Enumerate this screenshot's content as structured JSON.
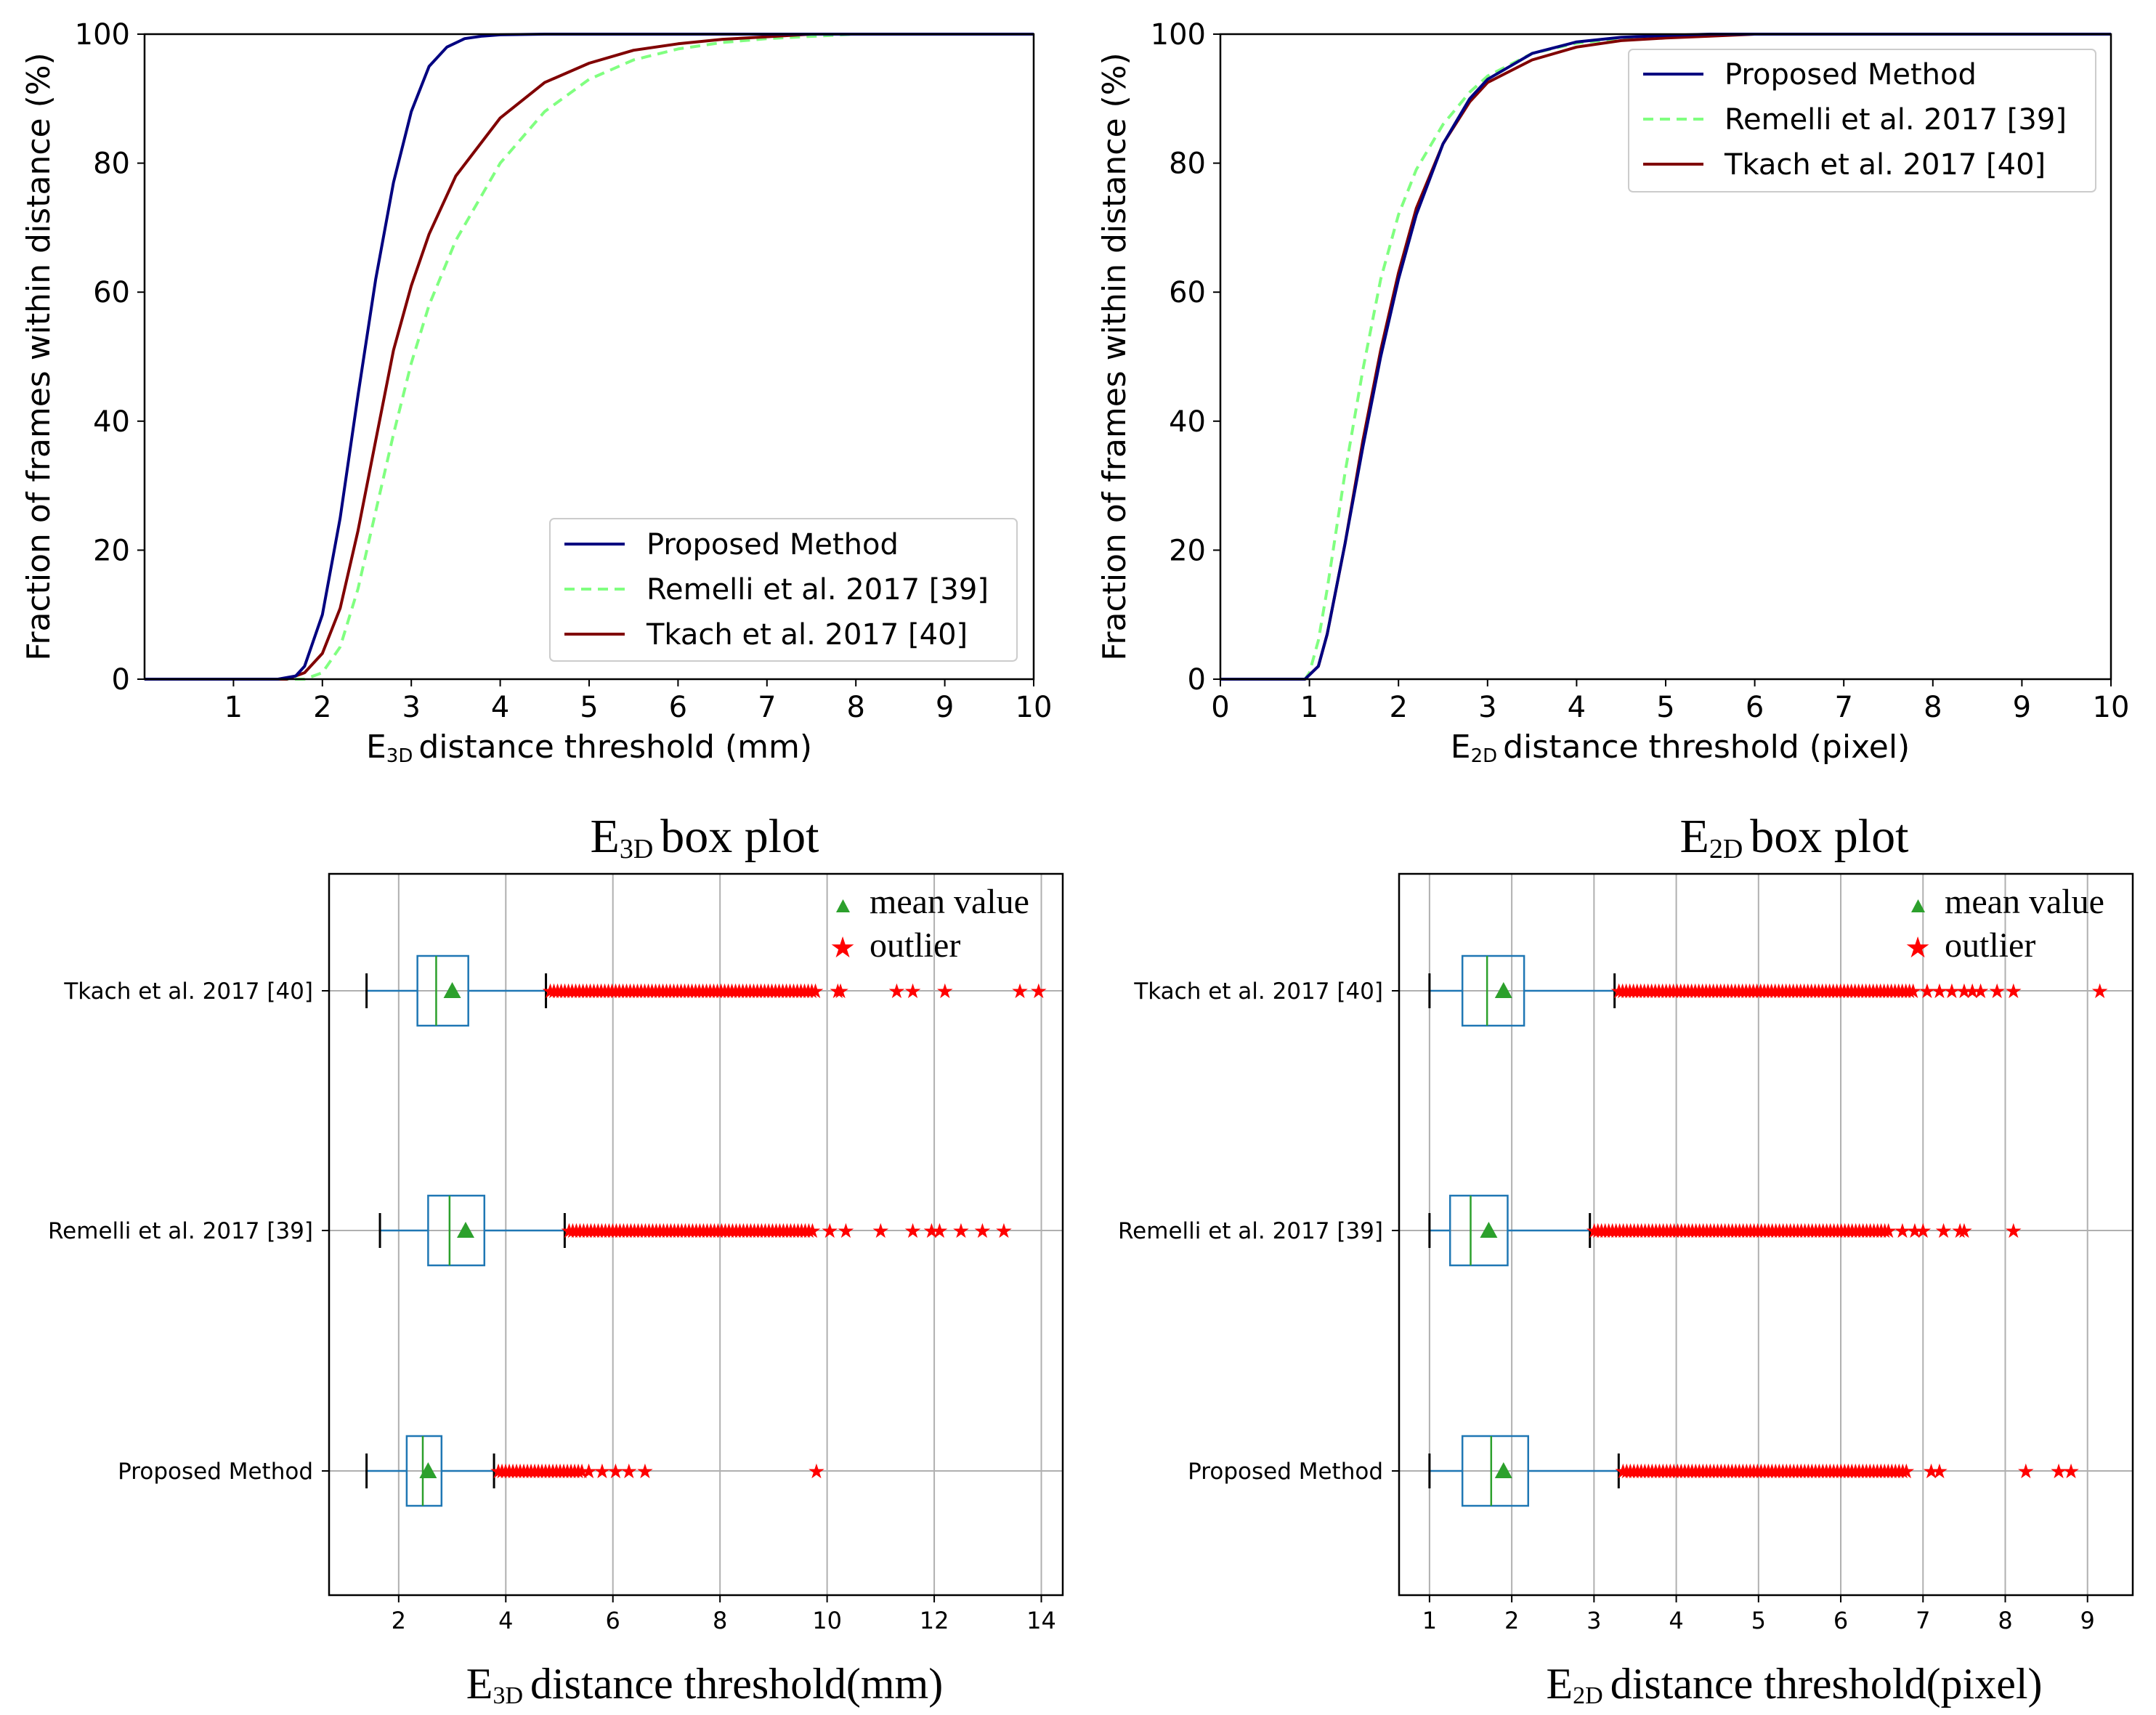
{
  "colors": {
    "proposed": "#000080",
    "remelli": "#80ff80",
    "tkach": "#800000",
    "box": "#1f77b4",
    "median": "#2ca02c",
    "mean": "#2ca02c",
    "outlier": "#ff0000",
    "grid": "#b0b0b0"
  },
  "chart_data": [
    {
      "type": "line",
      "id": "cdf3d",
      "title": "",
      "xlabel_prefix": "E",
      "xlabel_sub": "3D",
      "xlabel_rest": "distance threshold (mm)",
      "ylabel": "Fraction of frames within distance (%)",
      "xlim": [
        0,
        10
      ],
      "ylim": [
        0,
        100
      ],
      "xticks": [
        "1",
        "2",
        "3",
        "4",
        "5",
        "6",
        "7",
        "8",
        "9",
        "10"
      ],
      "yticks": [
        "0",
        "20",
        "40",
        "60",
        "80",
        "100"
      ],
      "legend_position": "lower-right",
      "series": [
        {
          "name": "Proposed Method",
          "style": "solid",
          "x": [
            0,
            1.5,
            1.7,
            1.8,
            2.0,
            2.2,
            2.4,
            2.6,
            2.8,
            3.0,
            3.2,
            3.4,
            3.6,
            3.8,
            4.0,
            4.5,
            5,
            6,
            10
          ],
          "y": [
            0,
            0,
            0.5,
            2,
            10,
            25,
            44,
            62,
            77,
            88,
            95,
            98,
            99.3,
            99.7,
            99.9,
            100,
            100,
            100,
            100
          ]
        },
        {
          "name": "Remelli et al. 2017 [39]",
          "style": "dashed",
          "x": [
            0,
            1.8,
            2.0,
            2.2,
            2.4,
            2.6,
            2.8,
            3.0,
            3.2,
            3.5,
            4.0,
            4.5,
            5,
            5.5,
            6,
            6.5,
            7,
            8,
            10
          ],
          "y": [
            0,
            0,
            1,
            5,
            14,
            26,
            38,
            49,
            58,
            68,
            80,
            88,
            93,
            96,
            97.7,
            98.7,
            99.3,
            100,
            100
          ]
        },
        {
          "name": "Tkach et al. 2017 [40]",
          "style": "solid",
          "x": [
            0,
            1.6,
            1.8,
            2.0,
            2.2,
            2.4,
            2.6,
            2.8,
            3.0,
            3.2,
            3.5,
            4.0,
            4.5,
            5,
            5.5,
            6,
            6.5,
            7,
            7.5,
            10
          ],
          "y": [
            0,
            0,
            1,
            4,
            11,
            23,
            37,
            51,
            61,
            69,
            78,
            87,
            92.5,
            95.5,
            97.5,
            98.5,
            99.2,
            99.6,
            100,
            100
          ]
        }
      ]
    },
    {
      "type": "line",
      "id": "cdf2d",
      "title": "",
      "xlabel_prefix": "E",
      "xlabel_sub": "2D",
      "xlabel_rest": "distance threshold (pixel)",
      "ylabel": "Fraction of frames within distance (%)",
      "xlim": [
        0,
        10
      ],
      "ylim": [
        0,
        100
      ],
      "xticks": [
        "0",
        "1",
        "2",
        "3",
        "4",
        "5",
        "6",
        "7",
        "8",
        "9",
        "10"
      ],
      "yticks": [
        "0",
        "20",
        "40",
        "60",
        "80",
        "100"
      ],
      "legend_position": "upper-right",
      "series": [
        {
          "name": "Proposed Method",
          "style": "solid",
          "x": [
            0,
            0.95,
            1.1,
            1.2,
            1.4,
            1.6,
            1.8,
            2.0,
            2.2,
            2.5,
            2.8,
            3.0,
            3.5,
            4.0,
            4.5,
            5,
            5.5,
            6,
            10
          ],
          "y": [
            0,
            0,
            2,
            7,
            21,
            36,
            50,
            62,
            72,
            83,
            90,
            93,
            97,
            98.8,
            99.5,
            99.8,
            100,
            100,
            100
          ]
        },
        {
          "name": "Remelli et al. 2017 [39]",
          "style": "dashed",
          "x": [
            0,
            0.95,
            1.0,
            1.1,
            1.2,
            1.4,
            1.6,
            1.8,
            2.0,
            2.2,
            2.5,
            2.8,
            3.0,
            3.5,
            4.0,
            4.5,
            5,
            6,
            10
          ],
          "y": [
            0,
            0,
            1,
            6,
            14,
            32,
            48,
            62,
            72,
            79,
            86,
            91,
            93.5,
            97,
            98.6,
            99.3,
            99.7,
            100,
            100
          ]
        },
        {
          "name": "Tkach et al. 2017 [40]",
          "style": "solid",
          "x": [
            0,
            0.95,
            1.1,
            1.2,
            1.4,
            1.6,
            1.8,
            2.0,
            2.2,
            2.5,
            2.8,
            3.0,
            3.5,
            4.0,
            4.5,
            5,
            5.5,
            6,
            6.5,
            10
          ],
          "y": [
            0,
            0,
            2,
            7,
            21,
            37,
            51,
            63,
            73,
            83,
            89.5,
            92.5,
            96,
            98,
            99,
            99.4,
            99.7,
            100,
            100,
            100
          ]
        }
      ]
    },
    {
      "type": "box",
      "id": "box3d",
      "title_prefix": "E",
      "title_sub": "3D",
      "title_rest": "box plot",
      "xlabel_prefix": "E",
      "xlabel_sub": "3D",
      "xlabel_rest": "distance threshold(mm)",
      "xlim": [
        0.7,
        14.4
      ],
      "xticks": [
        "2",
        "4",
        "6",
        "8",
        "10",
        "12",
        "14"
      ],
      "legend": [
        "mean value",
        "outlier"
      ],
      "boxes": [
        {
          "name": "Tkach et al. 2017 [40]",
          "whislo": 1.4,
          "q1": 2.35,
          "med": 2.7,
          "q3": 3.3,
          "whishi": 4.75,
          "mean": 3.0,
          "outlier_band": [
            4.75,
            9.85
          ],
          "outliers": [
            10.2,
            10.25,
            11.3,
            11.6,
            12.2,
            13.6,
            13.95
          ]
        },
        {
          "name": "Remelli et al. 2017 [39]",
          "whislo": 1.65,
          "q1": 2.55,
          "med": 2.95,
          "q3": 3.6,
          "whishi": 5.1,
          "mean": 3.25,
          "outlier_band": [
            5.1,
            9.75
          ],
          "outliers": [
            10.05,
            10.35,
            11.0,
            11.6,
            11.95,
            12.1,
            12.5,
            12.9,
            13.3
          ]
        },
        {
          "name": "Proposed Method",
          "whislo": 1.4,
          "q1": 2.15,
          "med": 2.45,
          "q3": 2.8,
          "whishi": 3.78,
          "mean": 2.55,
          "outlier_band": [
            3.78,
            5.45
          ],
          "outliers": [
            5.55,
            5.8,
            6.05,
            6.3,
            6.6,
            9.8
          ]
        }
      ]
    },
    {
      "type": "box",
      "id": "box2d",
      "title_prefix": "E",
      "title_sub": "2D",
      "title_rest": "box plot",
      "xlabel_prefix": "E",
      "xlabel_sub": "2D",
      "xlabel_rest": "distance threshold(pixel)",
      "xlim": [
        0.63,
        9.55
      ],
      "xticks": [
        "1",
        "2",
        "3",
        "4",
        "5",
        "6",
        "7",
        "8",
        "9"
      ],
      "legend": [
        "mean value",
        "outlier"
      ],
      "boxes": [
        {
          "name": "Tkach et al. 2017 [40]",
          "whislo": 1.0,
          "q1": 1.4,
          "med": 1.7,
          "q3": 2.15,
          "whishi": 3.25,
          "mean": 1.9,
          "outlier_band": [
            3.25,
            6.9
          ],
          "outliers": [
            7.05,
            7.2,
            7.35,
            7.5,
            7.6,
            7.7,
            7.9,
            8.1,
            9.15
          ]
        },
        {
          "name": "Remelli et al. 2017 [39]",
          "whislo": 1.0,
          "q1": 1.25,
          "med": 1.5,
          "q3": 1.95,
          "whishi": 2.95,
          "mean": 1.72,
          "outlier_band": [
            2.95,
            6.6
          ],
          "outliers": [
            6.75,
            6.9,
            7.0,
            7.25,
            7.45,
            7.5,
            8.1
          ]
        },
        {
          "name": "Proposed Method",
          "whislo": 1.0,
          "q1": 1.4,
          "med": 1.75,
          "q3": 2.2,
          "whishi": 3.3,
          "mean": 1.9,
          "outlier_band": [
            3.3,
            6.8
          ],
          "outliers": [
            7.1,
            7.2,
            8.25,
            8.65,
            8.8
          ]
        }
      ]
    }
  ]
}
